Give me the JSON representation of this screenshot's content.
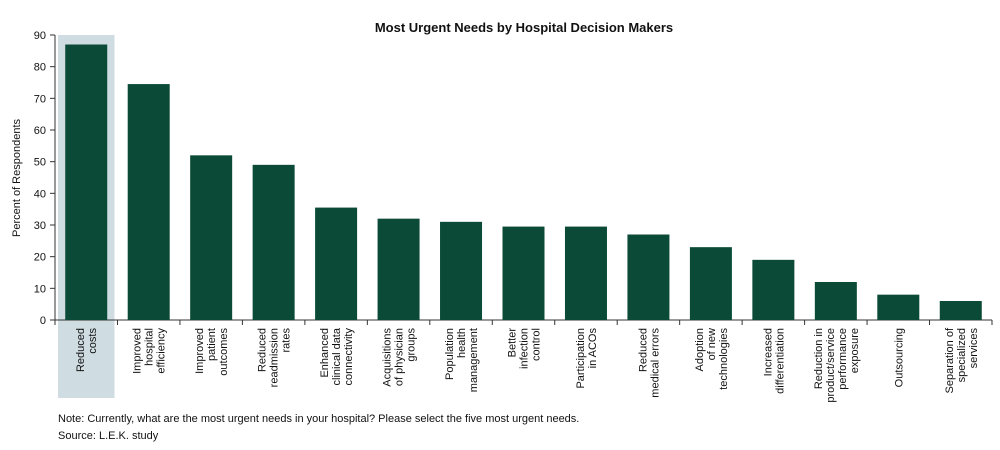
{
  "chart_data": {
    "type": "bar",
    "title": "Most Urgent Needs by Hospital Decision Makers",
    "y_label": "Percent of Respondents",
    "categories": [
      "Reduced\ncosts",
      "Improved\nhospital\nefficiency",
      "Improved\npatient\noutcomes",
      "Reduced\nreadmission\nrates",
      "Enhanced\nclinical data\nconnectivity",
      "Acquisitions\nof physician\ngroups",
      "Population\nhealth\nmanagement",
      "Better\ninfection\ncontrol",
      "Participation\nin ACOs",
      "Reduced\nmedical errors",
      "Adoption\nof new\ntechnologies",
      "Increased\ndifferentiation",
      "Reduction in\nproduct/service\nperformance\nexposure",
      "Outsourcing",
      "Separation of\nspecialized\nservices"
    ],
    "values": [
      87,
      74.5,
      52,
      49,
      35.5,
      32,
      31,
      29.5,
      29.5,
      27,
      23,
      19,
      12,
      8,
      6
    ],
    "color": "#0b4a36",
    "highlight_index": 0,
    "highlight_color": "#cfdde2",
    "ylim": [
      0,
      90
    ],
    "yticks": [
      0,
      10,
      20,
      30,
      40,
      50,
      60,
      70,
      80,
      90
    ],
    "note": "Note: Currently, what are the most urgent needs in your hospital? Please select the five most urgent needs.",
    "source": "Source: L.E.K. study"
  }
}
